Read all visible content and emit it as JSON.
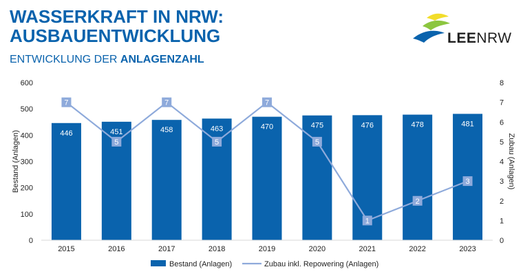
{
  "header": {
    "title_line1": "WASSERKRAFT IN NRW:",
    "title_line2": "AUSBAUENTWICKLUNG",
    "subtitle_regular": "ENTWICKLUNG DER ",
    "subtitle_bold": "ANLAGENZAHL"
  },
  "logo": {
    "text_bold": "LEE",
    "text_regular": "NRW",
    "colors": [
      "#f2dd2a",
      "#8cc63f",
      "#0a63ad"
    ]
  },
  "chart_data": {
    "type": "bar",
    "categories": [
      "2015",
      "2016",
      "2017",
      "2018",
      "2019",
      "2020",
      "2021",
      "2022",
      "2023"
    ],
    "series": [
      {
        "name": "Bestand (Anlagen)",
        "type": "bar",
        "axis": "left",
        "color": "#0a63ad",
        "values": [
          446,
          451,
          458,
          463,
          470,
          475,
          476,
          478,
          481
        ]
      },
      {
        "name": "Zubau inkl. Repowering (Anlagen)",
        "type": "line",
        "axis": "right",
        "color": "#8eaadb",
        "values": [
          7,
          5,
          7,
          5,
          7,
          5,
          1,
          2,
          3
        ]
      }
    ],
    "ylabel": "Bestand (Anlagen)",
    "y2label": "Zubau (Anlagen)",
    "ylim": [
      0,
      600
    ],
    "yticks": [
      0,
      100,
      200,
      300,
      400,
      500,
      600
    ],
    "y2lim": [
      0,
      8
    ],
    "y2ticks": [
      0,
      1,
      2,
      3,
      4,
      5,
      6,
      7,
      8
    ],
    "grid": false,
    "legend": "bottom-center",
    "data_labels": true
  }
}
